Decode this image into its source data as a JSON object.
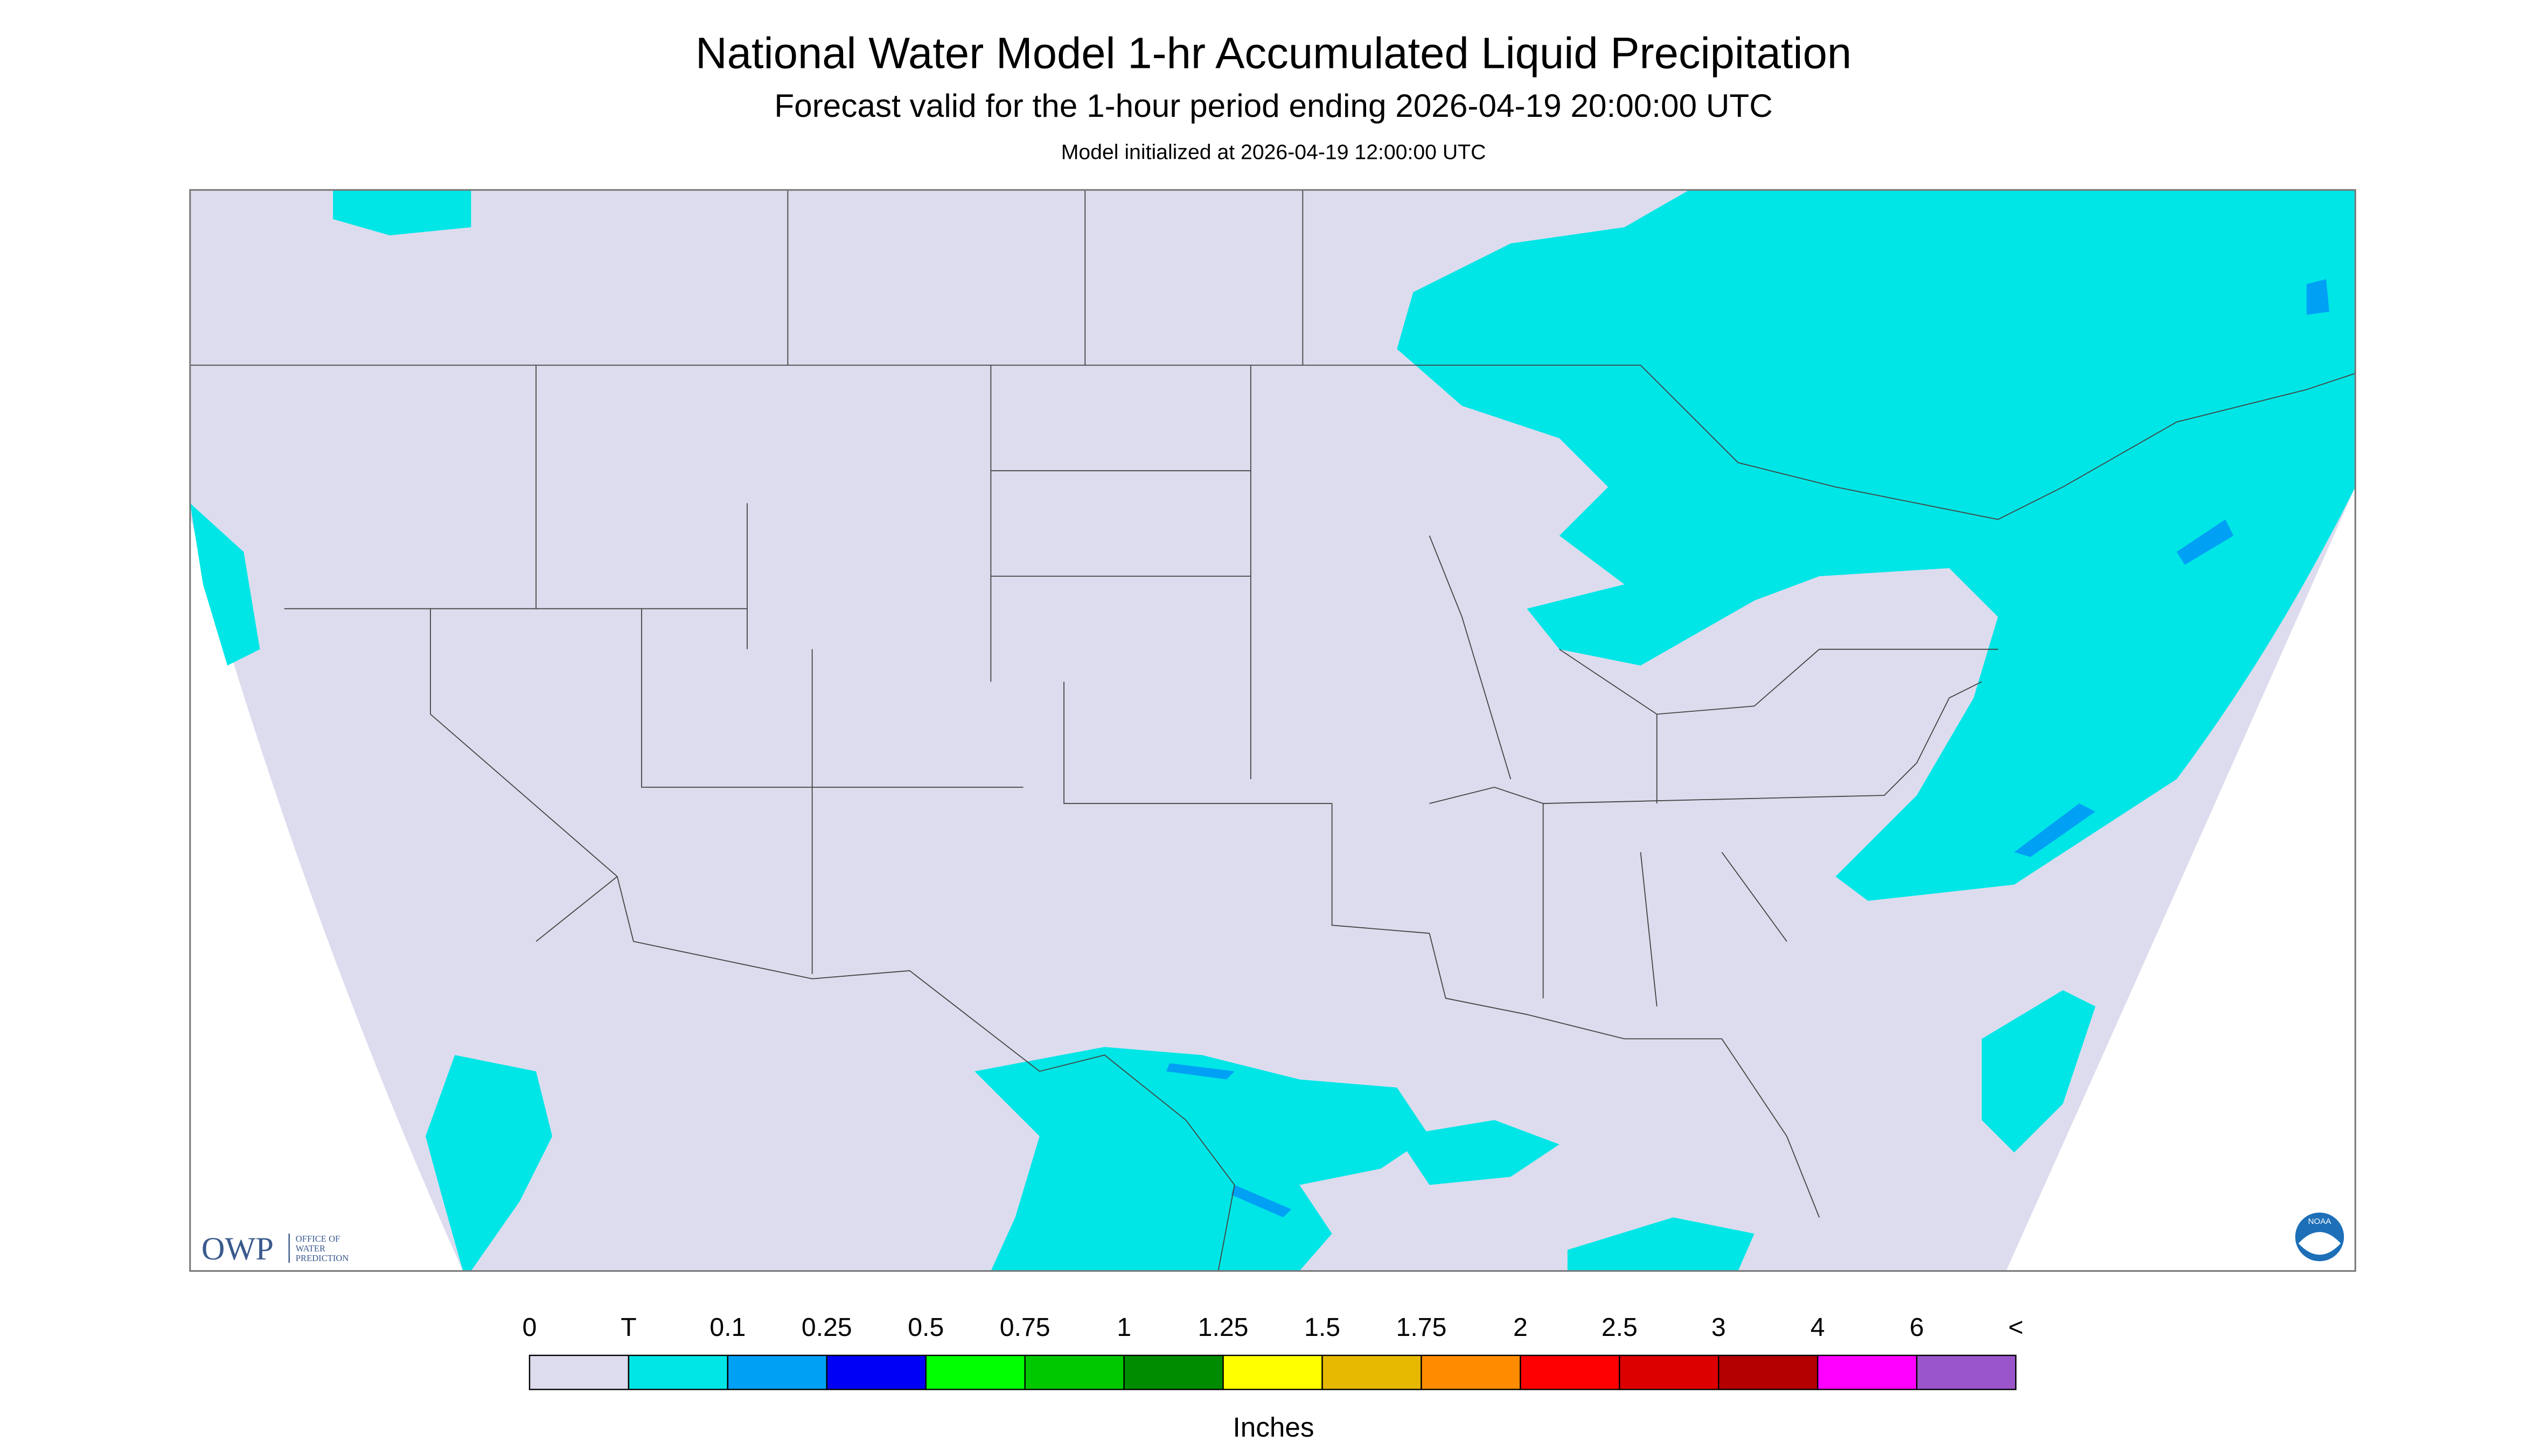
{
  "header": {
    "title": "National Water Model 1-hr Accumulated Liquid Precipitation",
    "subtitle": "Forecast valid for the 1-hour period ending 2026-04-19 20:00:00 UTC",
    "init": "Model initialized at 2026-04-19 12:00:00 UTC"
  },
  "logo": {
    "abbr": "OWP",
    "lines": [
      "OFFICE OF",
      "WATER",
      "PREDICTION"
    ],
    "agency": "NOAA"
  },
  "legend": {
    "labels": [
      0,
      "T",
      0.1,
      0.25,
      0.5,
      0.75,
      1,
      1.25,
      1.5,
      1.75,
      2,
      2.5,
      3,
      4,
      6,
      "<"
    ],
    "colors": [
      "#dcdcee",
      "#00e6e6",
      "#00a0f5",
      "#0000f5",
      "#00ff00",
      "#00c800",
      "#008c00",
      "#ffff00",
      "#e6b800",
      "#ff8c00",
      "#ff0000",
      "#dc0000",
      "#b40000",
      "#ff00ff",
      "#9955c9"
    ],
    "unit": "Inches"
  }
}
